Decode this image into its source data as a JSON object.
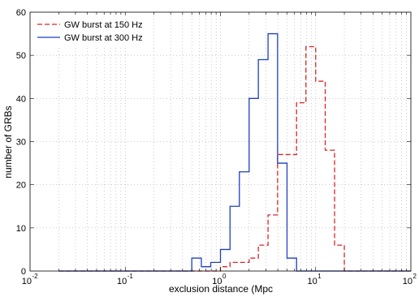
{
  "chart_data": {
    "type": "line",
    "subtype": "step-histogram",
    "xscale": "log",
    "xlim": [
      0.01,
      100
    ],
    "ylim": [
      0,
      60
    ],
    "xlabel": "exclusion distance (Mpc",
    "ylabel": "number of GRBs",
    "x_ticks": [
      {
        "value": 0.01,
        "base": "10",
        "exp": "-2"
      },
      {
        "value": 0.1,
        "base": "10",
        "exp": "-1"
      },
      {
        "value": 1,
        "base": "10",
        "exp": "0"
      },
      {
        "value": 10,
        "base": "10",
        "exp": "1"
      },
      {
        "value": 100,
        "base": "10",
        "exp": "2"
      }
    ],
    "y_ticks": [
      "0",
      "10",
      "20",
      "30",
      "40",
      "50",
      "60"
    ],
    "grid": true,
    "legend_position": "top-left",
    "bin_edges": [
      0.02,
      0.5,
      0.63,
      0.79,
      1.0,
      1.26,
      1.58,
      2.0,
      2.5,
      3.16,
      3.98,
      5.0,
      6.3,
      7.9,
      10.0,
      12.6,
      15.8,
      20.0,
      25.1,
      31.6,
      39.8,
      100
    ],
    "series": [
      {
        "name": "GW burst at 150 Hz",
        "color": "#d62728",
        "style": "dashed",
        "values": [
          0,
          0,
          0,
          0,
          1,
          2,
          2,
          3,
          6,
          13,
          27,
          27,
          39,
          52,
          44,
          28,
          6,
          0,
          0,
          0,
          0
        ]
      },
      {
        "name": "GW burst at 300 Hz",
        "color": "#1f3fbf",
        "style": "solid",
        "values": [
          0,
          3,
          1,
          2,
          5,
          15,
          23,
          40,
          49,
          55,
          25,
          3,
          0,
          0,
          0,
          0,
          0,
          0,
          0,
          0,
          0
        ]
      }
    ]
  }
}
